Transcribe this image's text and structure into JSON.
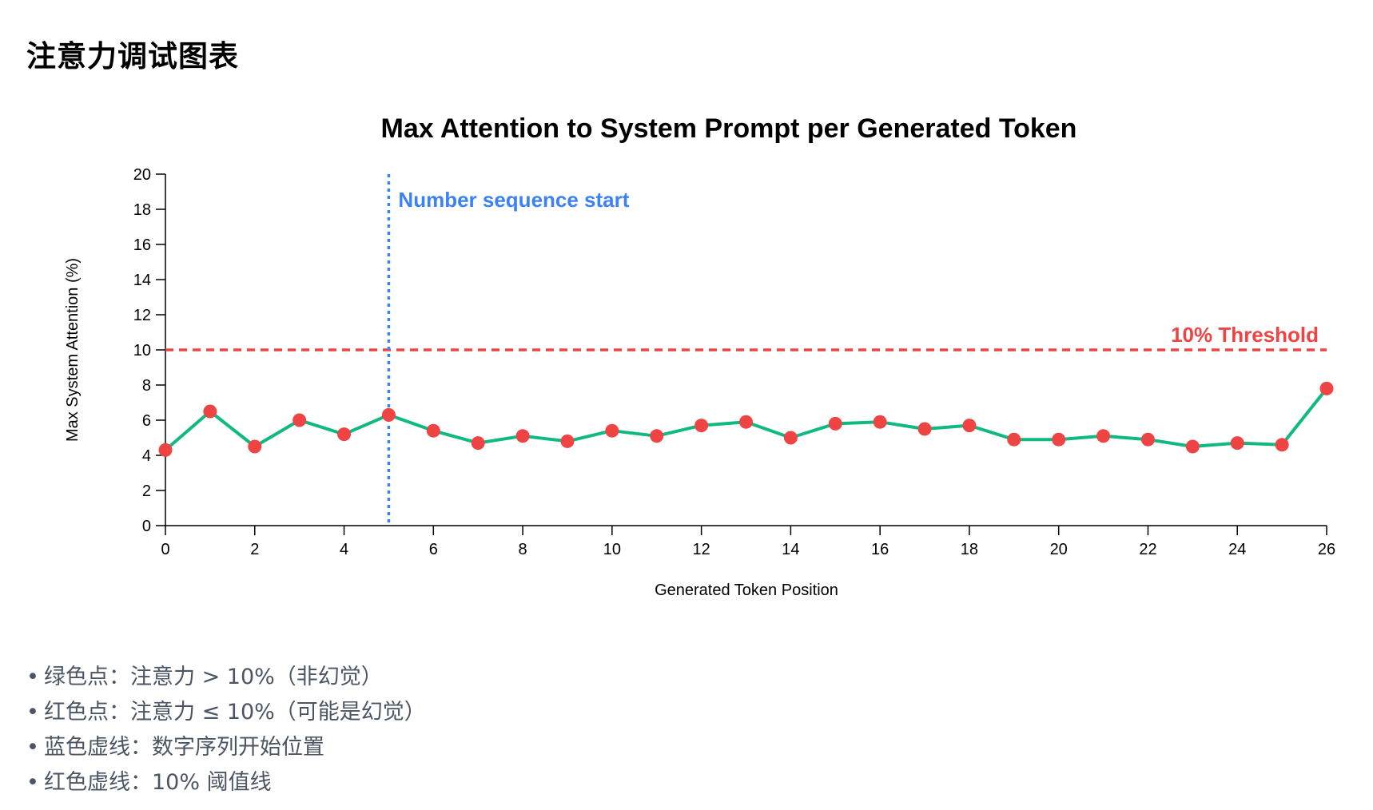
{
  "page": {
    "title": "注意力调试图表"
  },
  "chart_data": {
    "type": "line",
    "title": "Max Attention to System Prompt per Generated Token",
    "xlabel": "Generated Token Position",
    "ylabel": "Max System Attention (%)",
    "xlim": [
      0,
      26
    ],
    "ylim": [
      0,
      20
    ],
    "x_ticks": [
      0,
      2,
      4,
      6,
      8,
      10,
      12,
      14,
      16,
      18,
      20,
      22,
      24,
      26
    ],
    "y_ticks": [
      0,
      2,
      4,
      6,
      8,
      10,
      12,
      14,
      16,
      18,
      20
    ],
    "grid": false,
    "series": [
      {
        "x": [
          0,
          1,
          2,
          3,
          4,
          5,
          6,
          7,
          8,
          9,
          10,
          11,
          12,
          13,
          14,
          15,
          16,
          17,
          18,
          19,
          20,
          21,
          22,
          23,
          24,
          25,
          26
        ],
        "values": [
          4.3,
          6.5,
          4.5,
          6.0,
          5.2,
          6.3,
          5.4,
          4.7,
          5.1,
          4.8,
          5.4,
          5.1,
          5.7,
          5.9,
          5.0,
          5.8,
          5.9,
          5.5,
          5.7,
          4.9,
          4.9,
          5.1,
          4.9,
          4.5,
          4.7,
          4.6,
          7.8
        ],
        "line_color": "#10b981",
        "point_color": "#ef4444"
      }
    ],
    "annotations": {
      "threshold": {
        "y": 10,
        "label": "10% Threshold",
        "color": "#ef4444"
      },
      "sequence_start": {
        "x": 5,
        "label": "Number sequence start",
        "color": "#3b82f6"
      }
    }
  },
  "notes": [
    "绿色点：注意力 > 10%（非幻觉）",
    "红色点：注意力 ≤ 10%（可能是幻觉）",
    "蓝色虚线：数字序列开始位置",
    "红色虚线：10% 阈值线"
  ]
}
